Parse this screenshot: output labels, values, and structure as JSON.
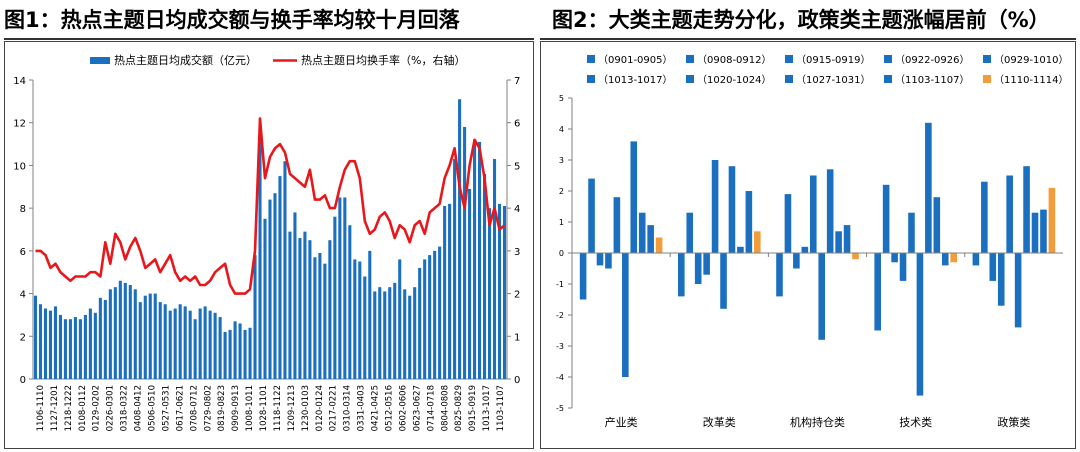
{
  "titles": {
    "left": "图1：热点主题日均成交额与换手率均较十月回落",
    "right": "图2：大类主题走势分化，政策类主题涨幅居前（%）"
  },
  "colors": {
    "bar": "#1b6fbf",
    "line": "#e8171b",
    "highlight": "#f39c3c",
    "axis": "#808080"
  },
  "chart_data": [
    {
      "type": "bar+line",
      "legend": {
        "bar": "热点主题日均成交额（亿元）",
        "line": "热点主题日均换手率（%，右轴）",
        "placement": "top"
      },
      "ylim": [
        0,
        14
      ],
      "y2lim": [
        0,
        7
      ],
      "yticks": [
        0,
        2,
        4,
        6,
        8,
        10,
        12,
        14
      ],
      "y2ticks": [
        0,
        1,
        2,
        3,
        4,
        5,
        6,
        7
      ],
      "grid": false,
      "tick_labels": [
        "1106-1110",
        "1127-1201",
        "1218-1222",
        "0108-0112",
        "0129-0202",
        "0226-0301",
        "0318-0322",
        "0408-0412",
        "0506-0510",
        "0527-0531",
        "0617-0621",
        "0708-0712",
        "0729-0802",
        "0819-0823",
        "0909-0913",
        "1008-1011",
        "1028-1101",
        "1118-1122",
        "1209-1213",
        "1230-0103",
        "0120-0124",
        "0217-0221",
        "0310-0314",
        "0331-0403",
        "0421-0425",
        "0512-0516",
        "0602-0606",
        "0623-0627",
        "0714-0718",
        "0804-0808",
        "0825-0829",
        "0915-0919",
        "1013-1017",
        "1103-1107"
      ],
      "bars": [
        3.9,
        3.5,
        3.3,
        3.2,
        3.4,
        3.0,
        2.8,
        2.8,
        2.9,
        2.8,
        3.0,
        3.3,
        3.1,
        3.8,
        3.7,
        4.2,
        4.3,
        4.6,
        4.5,
        4.4,
        4.2,
        3.6,
        3.9,
        4.0,
        4.0,
        3.6,
        3.5,
        3.2,
        3.3,
        3.5,
        3.4,
        3.2,
        2.8,
        3.3,
        3.4,
        3.2,
        3.1,
        2.9,
        2.2,
        2.3,
        2.7,
        2.6,
        2.3,
        2.4,
        5.8,
        11.5,
        7.5,
        8.4,
        8.7,
        9.5,
        10.2,
        6.9,
        7.8,
        6.6,
        6.9,
        6.5,
        5.7,
        5.9,
        5.4,
        6.5,
        7.6,
        8.5,
        8.5,
        7.2,
        5.6,
        5.5,
        4.8,
        6.0,
        4.1,
        4.3,
        4.1,
        4.3,
        4.5,
        5.6,
        4.2,
        3.9,
        4.3,
        5.2,
        5.6,
        5.8,
        6.0,
        6.2,
        8.1,
        8.2,
        10.3,
        13.1,
        11.8,
        8.9,
        11.2,
        11.1,
        9.6,
        8.0,
        10.3,
        8.2,
        8.1
      ],
      "line": [
        3.0,
        3.0,
        2.9,
        2.6,
        2.7,
        2.5,
        2.4,
        2.3,
        2.4,
        2.4,
        2.4,
        2.5,
        2.5,
        2.4,
        3.2,
        2.7,
        3.4,
        3.2,
        2.8,
        3.1,
        3.3,
        3.0,
        2.6,
        2.7,
        2.8,
        2.5,
        2.7,
        2.9,
        2.5,
        2.3,
        2.4,
        2.3,
        2.4,
        2.2,
        2.2,
        2.3,
        2.5,
        2.6,
        2.7,
        2.2,
        2.0,
        2.0,
        2.0,
        2.1,
        3.0,
        6.1,
        4.7,
        5.2,
        5.4,
        5.5,
        5.3,
        4.8,
        4.7,
        4.6,
        4.5,
        4.9,
        4.2,
        4.2,
        4.3,
        4.0,
        4.0,
        4.5,
        4.9,
        5.1,
        5.1,
        4.7,
        3.7,
        3.4,
        3.5,
        3.8,
        3.9,
        3.7,
        3.3,
        3.6,
        3.5,
        3.2,
        3.6,
        3.7,
        3.4,
        3.9,
        4.0,
        4.1,
        4.7,
        5.0,
        5.4,
        4.5,
        4.0,
        5.0,
        5.6,
        5.4,
        4.7,
        3.6,
        4.0,
        3.5,
        3.6
      ]
    },
    {
      "type": "bar",
      "legend": {
        "placement": "top",
        "entries": [
          "（0901-0905）",
          "（0908-0912）",
          "（0915-0919）",
          "（0922-0926）",
          "（0929-1010）",
          "（1013-1017）",
          "（1020-1024）",
          "（1027-1031）",
          "（1103-1107）",
          "（1110-1114）"
        ]
      },
      "categories": [
        "产业类",
        "改革类",
        "机构持仓类",
        "技术类",
        "政策类"
      ],
      "ylim": [
        -5,
        5
      ],
      "yticks": [
        -5,
        -4,
        -3,
        -2,
        -1,
        0,
        1,
        2,
        3,
        4,
        5
      ],
      "grid": false,
      "series": [
        {
          "name": "（0901-0905）",
          "values": [
            -1.5,
            -1.4,
            -1.4,
            -2.5,
            -0.4
          ]
        },
        {
          "name": "（0908-0912）",
          "values": [
            2.4,
            1.3,
            1.9,
            2.2,
            2.3
          ]
        },
        {
          "name": "（0915-0919）",
          "values": [
            -0.4,
            -1.0,
            -0.5,
            -0.3,
            -0.9
          ]
        },
        {
          "name": "（0922-0926）",
          "values": [
            -0.5,
            -0.7,
            0.2,
            -0.9,
            -1.7
          ]
        },
        {
          "name": "（0929-1010）",
          "values": [
            1.8,
            3.0,
            2.5,
            1.3,
            2.5
          ]
        },
        {
          "name": "（1013-1017）",
          "values": [
            -4.0,
            -1.8,
            -2.8,
            -4.6,
            -2.4
          ]
        },
        {
          "name": "（1020-1024）",
          "values": [
            3.6,
            2.8,
            2.7,
            4.2,
            2.8
          ]
        },
        {
          "name": "（1027-1031）",
          "values": [
            1.3,
            0.2,
            0.7,
            1.8,
            1.3
          ]
        },
        {
          "name": "（1103-1107）",
          "values": [
            0.9,
            2.0,
            0.9,
            -0.4,
            1.4
          ]
        },
        {
          "name": "（1110-1114）",
          "values": [
            0.5,
            0.7,
            -0.2,
            -0.3,
            2.1
          ]
        }
      ]
    }
  ]
}
